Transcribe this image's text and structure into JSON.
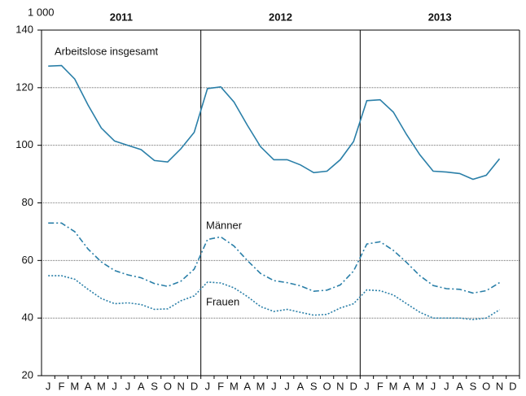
{
  "chart_data": {
    "type": "line",
    "unit_label": "1 000",
    "year_labels": [
      "2011",
      "2012",
      "2013"
    ],
    "categories": [
      "J",
      "F",
      "M",
      "A",
      "M",
      "J",
      "J",
      "A",
      "S",
      "O",
      "N",
      "D",
      "J",
      "F",
      "M",
      "A",
      "M",
      "J",
      "J",
      "A",
      "S",
      "O",
      "N",
      "D",
      "J",
      "F",
      "M",
      "A",
      "M",
      "J",
      "J",
      "A",
      "S",
      "O",
      "N",
      "D"
    ],
    "series": [
      {
        "name": "Arbeitslose insgesamt",
        "color": "#2a7fa8",
        "dash": "solid",
        "values": [
          127.5,
          127.7,
          123,
          114,
          106,
          101.5,
          100,
          98.5,
          94.7,
          94.2,
          98.8,
          104.5,
          119.7,
          120.3,
          115,
          107,
          99.5,
          95,
          95,
          93.2,
          90.5,
          91,
          95,
          101.3,
          115.5,
          115.8,
          111.5,
          103.7,
          96.7,
          91,
          90.7,
          90.2,
          88.2,
          89.6,
          95.3,
          null
        ]
      },
      {
        "name": "Männer",
        "color": "#2a7fa8",
        "dash": "dashdot",
        "values": [
          73,
          73,
          70,
          64,
          59.5,
          56.5,
          55,
          54,
          52,
          51,
          52.8,
          57,
          67.3,
          68.2,
          65,
          60,
          55.5,
          53,
          52.3,
          51.2,
          49.3,
          49.7,
          51.5,
          56.3,
          65.7,
          66.5,
          63.5,
          59.3,
          54.7,
          51.3,
          50.2,
          50,
          48.7,
          49.5,
          52.3,
          null
        ]
      },
      {
        "name": "Frauen",
        "color": "#2a7fa8",
        "dash": "dotted",
        "values": [
          54.7,
          54.7,
          53.5,
          50,
          46.8,
          45,
          45.3,
          44.7,
          43,
          43.2,
          46,
          47.7,
          52.5,
          52.2,
          50.5,
          47.5,
          44,
          42.3,
          43,
          42,
          41,
          41.3,
          43.5,
          45,
          49.8,
          49.5,
          48,
          45,
          42,
          40,
          40,
          40,
          39.5,
          40,
          42.9,
          null
        ]
      }
    ],
    "ylim": [
      20,
      140
    ],
    "yticks": [
      20,
      40,
      60,
      80,
      100,
      120,
      140
    ],
    "grid": true
  }
}
